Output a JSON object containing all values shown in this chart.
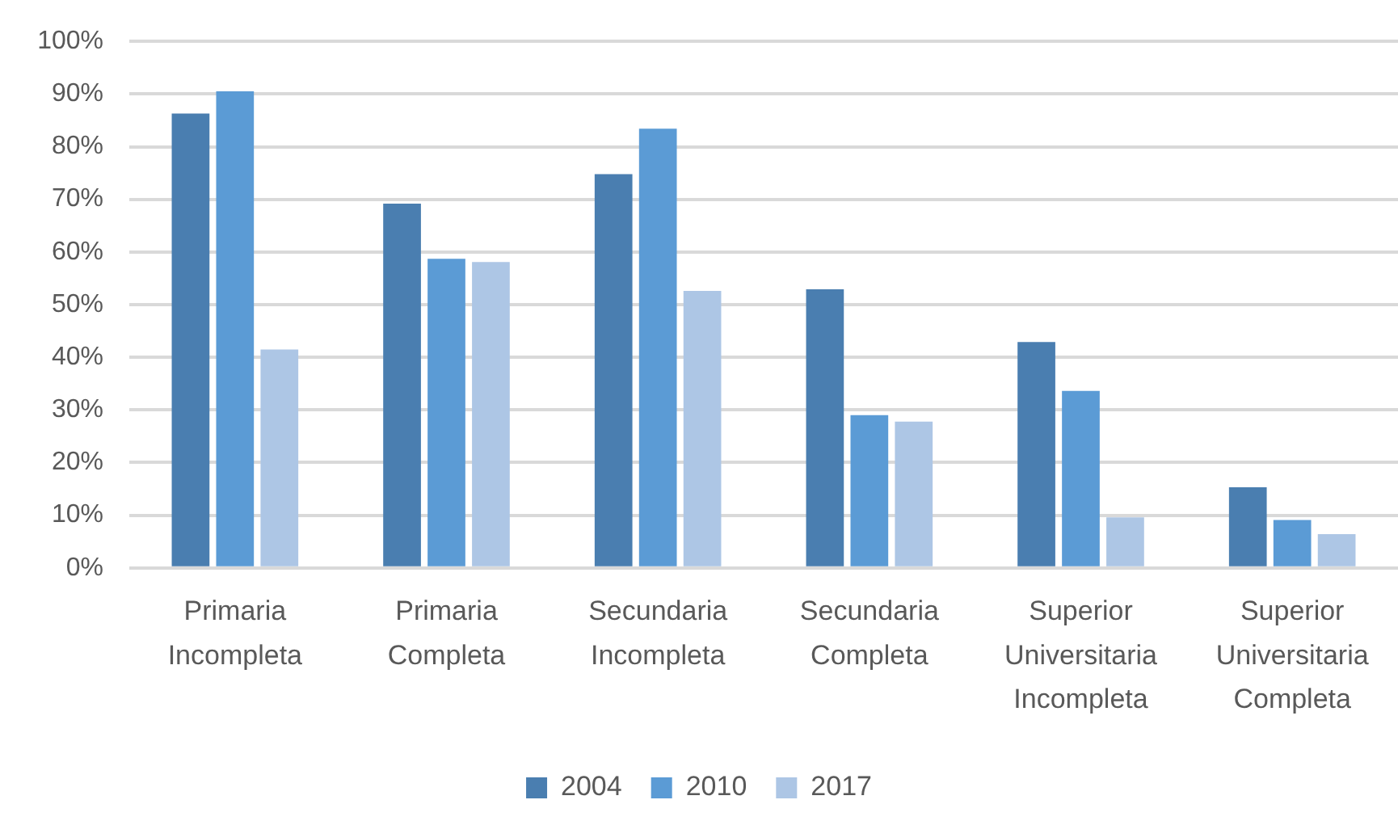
{
  "chart_data": {
    "type": "bar",
    "categories": [
      "Primaria Incompleta",
      "Primaria Completa",
      "Secundaria Incompleta",
      "Secundaria Completa",
      "Superior Universitaria Incompleta",
      "Superior Universitaria Completa"
    ],
    "series": [
      {
        "name": "2004",
        "color": "#4a7eb0",
        "values": [
          86.3,
          69.2,
          74.8,
          52.9,
          42.9,
          15.3
        ]
      },
      {
        "name": "2010",
        "color": "#5b9bd5",
        "values": [
          90.5,
          58.7,
          83.4,
          29.0,
          33.6,
          9.1
        ]
      },
      {
        "name": "2017",
        "color": "#adc6e5",
        "values": [
          41.5,
          58.1,
          52.6,
          27.8,
          9.6,
          6.4
        ]
      }
    ],
    "ylim": [
      0,
      100
    ],
    "yticks": [
      {
        "value": 0,
        "label": "0%"
      },
      {
        "value": 10,
        "label": "10%"
      },
      {
        "value": 20,
        "label": "20%"
      },
      {
        "value": 30,
        "label": "30%"
      },
      {
        "value": 40,
        "label": "40%"
      },
      {
        "value": 50,
        "label": "50%"
      },
      {
        "value": 60,
        "label": "60%"
      },
      {
        "value": 70,
        "label": "70%"
      },
      {
        "value": 80,
        "label": "80%"
      },
      {
        "value": 90,
        "label": "90%"
      },
      {
        "value": 100,
        "label": "100%"
      }
    ],
    "grid": "y",
    "legend": "bottom"
  }
}
